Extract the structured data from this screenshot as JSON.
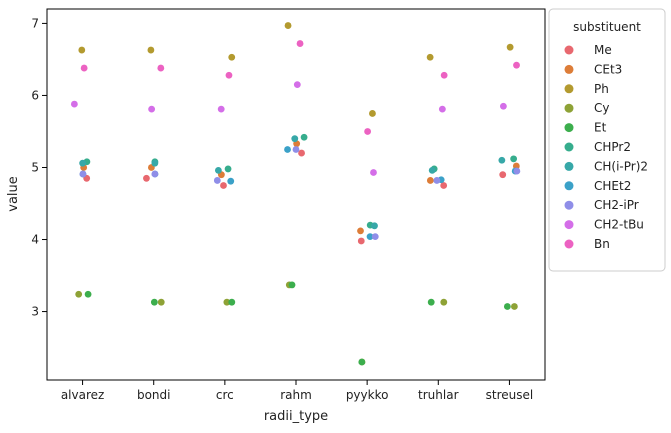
{
  "chart_data": {
    "type": "scatter",
    "subtype": "stripplot",
    "xlabel": "radii_type",
    "ylabel": "value",
    "categories": [
      "alvarez",
      "bondi",
      "crc",
      "rahm",
      "pyykko",
      "truhlar",
      "streusel"
    ],
    "ylim": [
      2.05,
      7.2
    ],
    "yticks": [
      3,
      4,
      5,
      6,
      7
    ],
    "grid": false,
    "legend": {
      "title": "substituent",
      "placement": "outside-right"
    },
    "series": [
      {
        "name": "Me",
        "color": "#e8686f",
        "values": [
          4.85,
          4.85,
          4.75,
          5.2,
          3.98,
          4.75,
          4.9
        ]
      },
      {
        "name": "CEt3",
        "color": "#dd7d38",
        "values": [
          5.0,
          5.0,
          4.9,
          5.33,
          4.12,
          4.82,
          5.02
        ]
      },
      {
        "name": "Ph",
        "color": "#b39a2f",
        "values": [
          6.63,
          6.63,
          6.53,
          6.97,
          5.75,
          6.53,
          6.67
        ]
      },
      {
        "name": "Cy",
        "color": "#8ea236",
        "values": [
          3.24,
          3.13,
          3.13,
          3.37,
          2.3,
          3.13,
          3.07
        ]
      },
      {
        "name": "Et",
        "color": "#3cae4d",
        "values": [
          3.24,
          3.13,
          3.13,
          3.37,
          2.3,
          3.13,
          3.07
        ]
      },
      {
        "name": "CHPr2",
        "color": "#36ad8d",
        "values": [
          5.08,
          5.08,
          4.98,
          5.42,
          4.2,
          4.98,
          5.12
        ]
      },
      {
        "name": "CH(i-Pr)2",
        "color": "#37a8a8",
        "values": [
          5.06,
          5.06,
          4.96,
          5.4,
          4.19,
          4.96,
          5.1
        ]
      },
      {
        "name": "CHEt2",
        "color": "#3ba1c8",
        "values": [
          4.91,
          4.91,
          4.81,
          5.25,
          4.04,
          4.83,
          4.95
        ]
      },
      {
        "name": "CH2-iPr",
        "color": "#8f8ee8",
        "values": [
          4.91,
          4.91,
          4.82,
          5.25,
          4.04,
          4.82,
          4.95
        ]
      },
      {
        "name": "CH2-tBu",
        "color": "#d46ee8",
        "values": [
          5.88,
          5.81,
          5.81,
          6.15,
          4.93,
          5.81,
          5.85
        ]
      },
      {
        "name": "Bn",
        "color": "#ec62c2",
        "values": [
          6.38,
          6.38,
          6.28,
          6.72,
          5.5,
          6.28,
          6.42
        ]
      }
    ]
  }
}
